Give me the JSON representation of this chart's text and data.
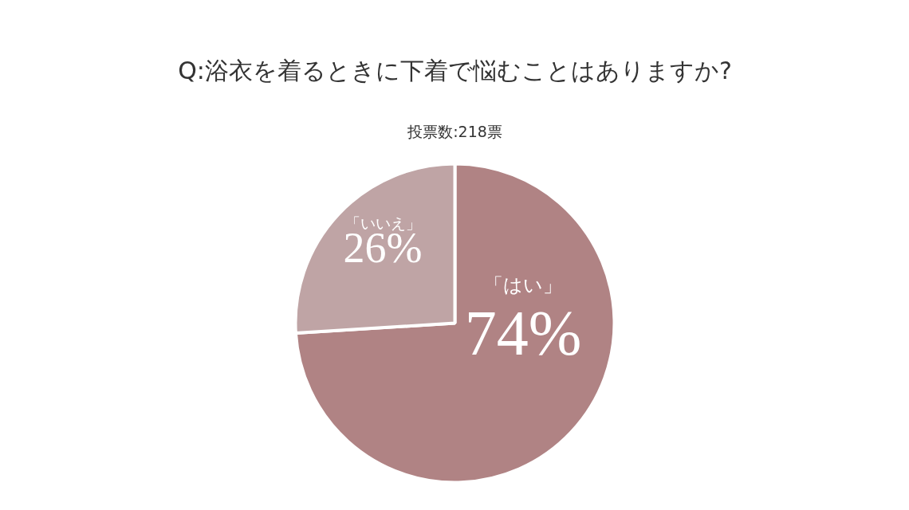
{
  "chart_data": {
    "type": "pie",
    "title": "Q:浴衣を着るときに下着で悩むことはありますか?",
    "subtitle": "投票数:218票",
    "categories": [
      "「はい」",
      "「いいえ」"
    ],
    "values": [
      74,
      26
    ],
    "colors": [
      "#b08384",
      "#bfa4a5"
    ],
    "value_labels": [
      "74%",
      "26%"
    ]
  }
}
